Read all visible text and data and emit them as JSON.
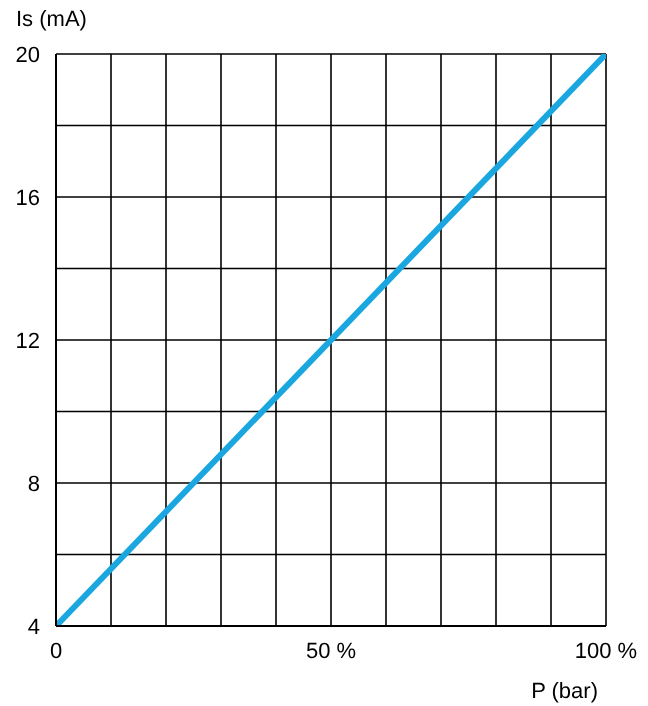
{
  "chart_data": {
    "type": "line",
    "xlabel": "P (bar)",
    "ylabel": "Is (mA)",
    "x": [
      0,
      100
    ],
    "series": [
      {
        "color": "#1aa7e0",
        "values": [
          4,
          20
        ]
      }
    ],
    "xlim": [
      0,
      100
    ],
    "xticks": [
      0,
      {
        "value": 10,
        "label": null
      },
      {
        "value": 20,
        "label": null
      },
      {
        "value": 30,
        "label": null
      },
      {
        "value": 40,
        "label": null
      },
      {
        "value": 50,
        "label": "50 %"
      },
      {
        "value": 60,
        "label": null
      },
      {
        "value": 70,
        "label": null
      },
      {
        "value": 80,
        "label": null
      },
      {
        "value": 90,
        "label": null
      },
      {
        "value": 100,
        "label": "100 %"
      }
    ],
    "ylim": [
      4,
      20
    ],
    "yticks": [
      4,
      {
        "value": 6,
        "label": null
      },
      8,
      {
        "value": 10,
        "label": null
      },
      12,
      {
        "value": 14,
        "label": null
      },
      16,
      {
        "value": 18,
        "label": null
      },
      20
    ],
    "grid": true,
    "legend": false,
    "marker": "none",
    "line_style": "solid"
  }
}
